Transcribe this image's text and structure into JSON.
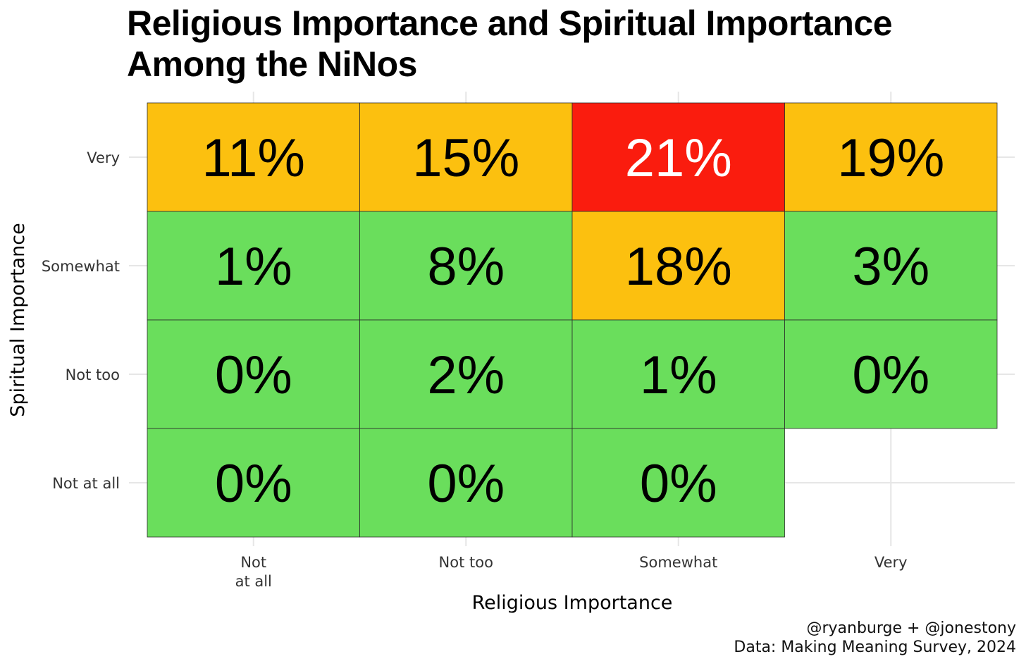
{
  "chart_data": {
    "type": "heatmap",
    "title_lines": [
      "Religious Importance and Spiritual Importance",
      "Among the NiNos"
    ],
    "xlabel": "Religious Importance",
    "ylabel": "Spiritual Importance",
    "x_categories": [
      "Not\nat all",
      "Not too",
      "Somewhat",
      "Very"
    ],
    "y_categories": [
      "Very",
      "Somewhat",
      "Not too",
      "Not at all"
    ],
    "cells": [
      {
        "x": "Not\nat all",
        "y": "Very",
        "value": 11,
        "label": "11%",
        "color": "#FCC00F"
      },
      {
        "x": "Not too",
        "y": "Very",
        "value": 15,
        "label": "15%",
        "color": "#FCC00F"
      },
      {
        "x": "Somewhat",
        "y": "Very",
        "value": 21,
        "label": "21%",
        "color": "#FA1C0E"
      },
      {
        "x": "Very",
        "y": "Very",
        "value": 19,
        "label": "19%",
        "color": "#FCC00F"
      },
      {
        "x": "Not\nat all",
        "y": "Somewhat",
        "value": 1,
        "label": "1%",
        "color": "#6ADE5C"
      },
      {
        "x": "Not too",
        "y": "Somewhat",
        "value": 8,
        "label": "8%",
        "color": "#6ADE5C"
      },
      {
        "x": "Somewhat",
        "y": "Somewhat",
        "value": 18,
        "label": "18%",
        "color": "#FCC00F"
      },
      {
        "x": "Very",
        "y": "Somewhat",
        "value": 3,
        "label": "3%",
        "color": "#6ADE5C"
      },
      {
        "x": "Not\nat all",
        "y": "Not too",
        "value": 0,
        "label": "0%",
        "color": "#6ADE5C"
      },
      {
        "x": "Not too",
        "y": "Not too",
        "value": 2,
        "label": "2%",
        "color": "#6ADE5C"
      },
      {
        "x": "Somewhat",
        "y": "Not too",
        "value": 1,
        "label": "1%",
        "color": "#6ADE5C"
      },
      {
        "x": "Very",
        "y": "Not too",
        "value": 0,
        "label": "0%",
        "color": "#6ADE5C"
      },
      {
        "x": "Not\nat all",
        "y": "Not at all",
        "value": 0,
        "label": "0%",
        "color": "#6ADE5C"
      },
      {
        "x": "Not too",
        "y": "Not at all",
        "value": 0,
        "label": "0%",
        "color": "#6ADE5C"
      },
      {
        "x": "Somewhat",
        "y": "Not at all",
        "value": 0,
        "label": "0%",
        "color": "#6ADE5C"
      }
    ],
    "label_colors": {
      "default": "#000000",
      "on_red": "#ffffff"
    },
    "grid": true,
    "legend": "none"
  },
  "caption": {
    "line1": "@ryanburge + @jonestony",
    "line2": "Data: Making Meaning Survey, 2024"
  }
}
